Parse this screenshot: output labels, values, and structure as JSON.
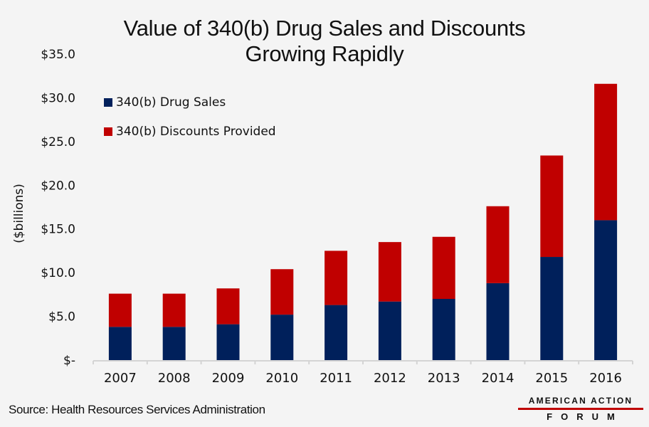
{
  "chart_data": {
    "type": "bar",
    "stacked": true,
    "title": "Value of 340(b) Drug Sales and Discounts Growing Rapidly",
    "title_lines": [
      "Value of 340(b) Drug Sales and Discounts",
      "Growing Rapidly"
    ],
    "xlabel": "",
    "ylabel": "($billions)",
    "ylim": [
      0,
      35
    ],
    "yticks": [
      0,
      5,
      10,
      15,
      20,
      25,
      30,
      35
    ],
    "ytick_labels": [
      "$-",
      "$5.0",
      "$10.0",
      "$15.0",
      "$20.0",
      "$25.0",
      "$30.0",
      "$35.0"
    ],
    "grid": false,
    "legend_position": "top-left",
    "categories": [
      "2007",
      "2008",
      "2009",
      "2010",
      "2011",
      "2012",
      "2013",
      "2014",
      "2015",
      "2016"
    ],
    "series": [
      {
        "name": "340(b) Drug Sales",
        "color": "#00205b",
        "values": [
          3.8,
          3.8,
          4.1,
          5.2,
          6.3,
          6.7,
          7.0,
          8.8,
          11.8,
          16.0
        ]
      },
      {
        "name": "340(b) Discounts Provided",
        "color": "#c00000",
        "values": [
          3.8,
          3.8,
          4.1,
          5.2,
          6.2,
          6.8,
          7.1,
          8.8,
          11.6,
          15.6
        ]
      }
    ]
  },
  "footer": {
    "source": "Source: Health Resources Services Administration",
    "logo_top": "AMERICAN ACTION",
    "logo_bottom": "FORUM",
    "logo_accent": "#c00000"
  }
}
